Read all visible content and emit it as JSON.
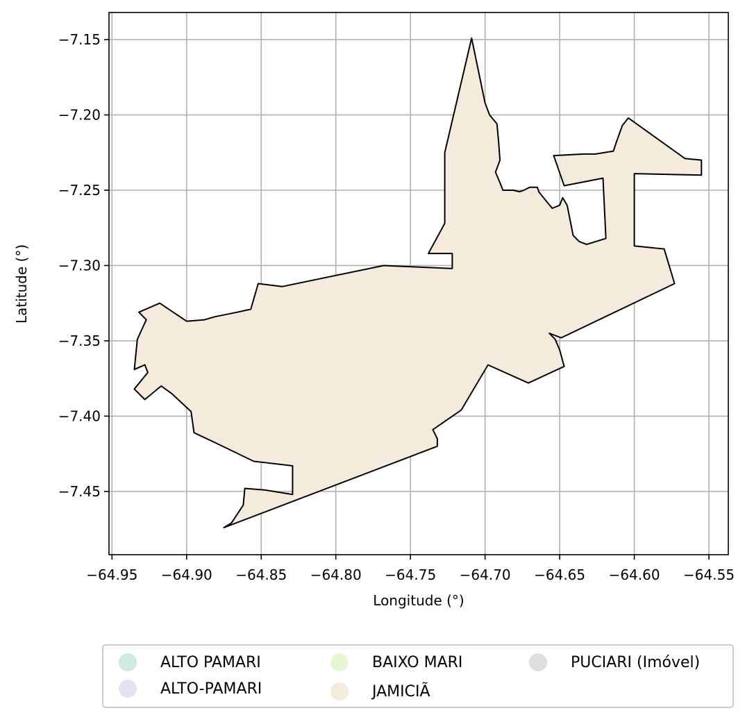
{
  "chart_data": {
    "type": "map",
    "xlabel": "Longitude (°)",
    "ylabel": "Latitude (°)",
    "xlim": [
      -64.952,
      -64.537
    ],
    "ylim": [
      -7.492,
      -7.132
    ],
    "x_ticks": [
      -64.95,
      -64.9,
      -64.85,
      -64.8,
      -64.75,
      -64.7,
      -64.65,
      -64.6,
      -64.55
    ],
    "x_tick_labels": [
      "−64.95",
      "−64.90",
      "−64.85",
      "−64.80",
      "−64.75",
      "−64.70",
      "−64.65",
      "−64.60",
      "−64.55"
    ],
    "y_ticks": [
      -7.15,
      -7.2,
      -7.25,
      -7.3,
      -7.35,
      -7.4,
      -7.45
    ],
    "y_tick_labels": [
      "−7.15",
      "−7.20",
      "−7.25",
      "−7.30",
      "−7.35",
      "−7.40",
      "−7.45"
    ],
    "grid": true,
    "legend_position": "bottom-center",
    "legend": [
      {
        "label": "ALTO PAMARI",
        "color": "#cdeadc"
      },
      {
        "label": "ALTO-PAMARI",
        "color": "#dde3f1"
      },
      {
        "label": "BAIXO MARI",
        "color": "#e9f6d6"
      },
      {
        "label": "JAMICIÃ",
        "color": "#f5ebdc"
      },
      {
        "label": "PUCIARI (Imóvel)",
        "color": "#dedede"
      }
    ],
    "boundary": [
      [
        -64.932,
        -7.331
      ],
      [
        -64.927,
        -7.336
      ],
      [
        -64.933,
        -7.349
      ],
      [
        -64.935,
        -7.369
      ],
      [
        -64.928,
        -7.366
      ],
      [
        -64.926,
        -7.371
      ],
      [
        -64.935,
        -7.382
      ],
      [
        -64.928,
        -7.389
      ],
      [
        -64.917,
        -7.38
      ],
      [
        -64.91,
        -7.385
      ],
      [
        -64.897,
        -7.397
      ],
      [
        -64.895,
        -7.411
      ],
      [
        -64.878,
        -7.419
      ],
      [
        -64.855,
        -7.43
      ],
      [
        -64.829,
        -7.433
      ],
      [
        -64.829,
        -7.452
      ],
      [
        -64.848,
        -7.449
      ],
      [
        -64.861,
        -7.448
      ],
      [
        -64.862,
        -7.459
      ],
      [
        -64.87,
        -7.471
      ],
      [
        -64.875,
        -7.474
      ],
      [
        -64.732,
        -7.42
      ],
      [
        -64.732,
        -7.415
      ],
      [
        -64.735,
        -7.409
      ],
      [
        -64.716,
        -7.396
      ],
      [
        -64.698,
        -7.366
      ],
      [
        -64.671,
        -7.378
      ],
      [
        -64.647,
        -7.367
      ],
      [
        -64.65,
        -7.356
      ],
      [
        -64.653,
        -7.349
      ],
      [
        -64.657,
        -7.345
      ],
      [
        -64.649,
        -7.348
      ],
      [
        -64.573,
        -7.312
      ],
      [
        -64.58,
        -7.289
      ],
      [
        -64.6,
        -7.287
      ],
      [
        -64.6,
        -7.239
      ],
      [
        -64.555,
        -7.24
      ],
      [
        -64.555,
        -7.23
      ],
      [
        -64.566,
        -7.229
      ],
      [
        -64.604,
        -7.202
      ],
      [
        -64.608,
        -7.207
      ],
      [
        -64.612,
        -7.218
      ],
      [
        -64.614,
        -7.224
      ],
      [
        -64.626,
        -7.226
      ],
      [
        -64.634,
        -7.226
      ],
      [
        -64.654,
        -7.227
      ],
      [
        -64.647,
        -7.247
      ],
      [
        -64.621,
        -7.242
      ],
      [
        -64.619,
        -7.282
      ],
      [
        -64.632,
        -7.286
      ],
      [
        -64.637,
        -7.284
      ],
      [
        -64.641,
        -7.28
      ],
      [
        -64.643,
        -7.27
      ],
      [
        -64.645,
        -7.26
      ],
      [
        -64.648,
        -7.255
      ],
      [
        -64.65,
        -7.26
      ],
      [
        -64.655,
        -7.262
      ],
      [
        -64.66,
        -7.256
      ],
      [
        -64.664,
        -7.251
      ],
      [
        -64.665,
        -7.248
      ],
      [
        -64.67,
        -7.248
      ],
      [
        -64.674,
        -7.25
      ],
      [
        -64.677,
        -7.251
      ],
      [
        -64.681,
        -7.25
      ],
      [
        -64.688,
        -7.25
      ],
      [
        -64.69,
        -7.245
      ],
      [
        -64.693,
        -7.238
      ],
      [
        -64.69,
        -7.23
      ],
      [
        -64.691,
        -7.217
      ],
      [
        -64.692,
        -7.206
      ],
      [
        -64.697,
        -7.2
      ],
      [
        -64.7,
        -7.192
      ],
      [
        -64.709,
        -7.149
      ],
      [
        -64.727,
        -7.225
      ],
      [
        -64.727,
        -7.272
      ],
      [
        -64.738,
        -7.292
      ],
      [
        -64.722,
        -7.292
      ],
      [
        -64.722,
        -7.302
      ],
      [
        -64.768,
        -7.3
      ],
      [
        -64.836,
        -7.314
      ],
      [
        -64.852,
        -7.312
      ],
      [
        -64.857,
        -7.329
      ],
      [
        -64.866,
        -7.331
      ],
      [
        -64.881,
        -7.334
      ],
      [
        -64.888,
        -7.336
      ],
      [
        -64.9,
        -7.337
      ],
      [
        -64.918,
        -7.325
      ],
      [
        -64.932,
        -7.331
      ]
    ],
    "fill_region": "JAMICIÃ"
  }
}
